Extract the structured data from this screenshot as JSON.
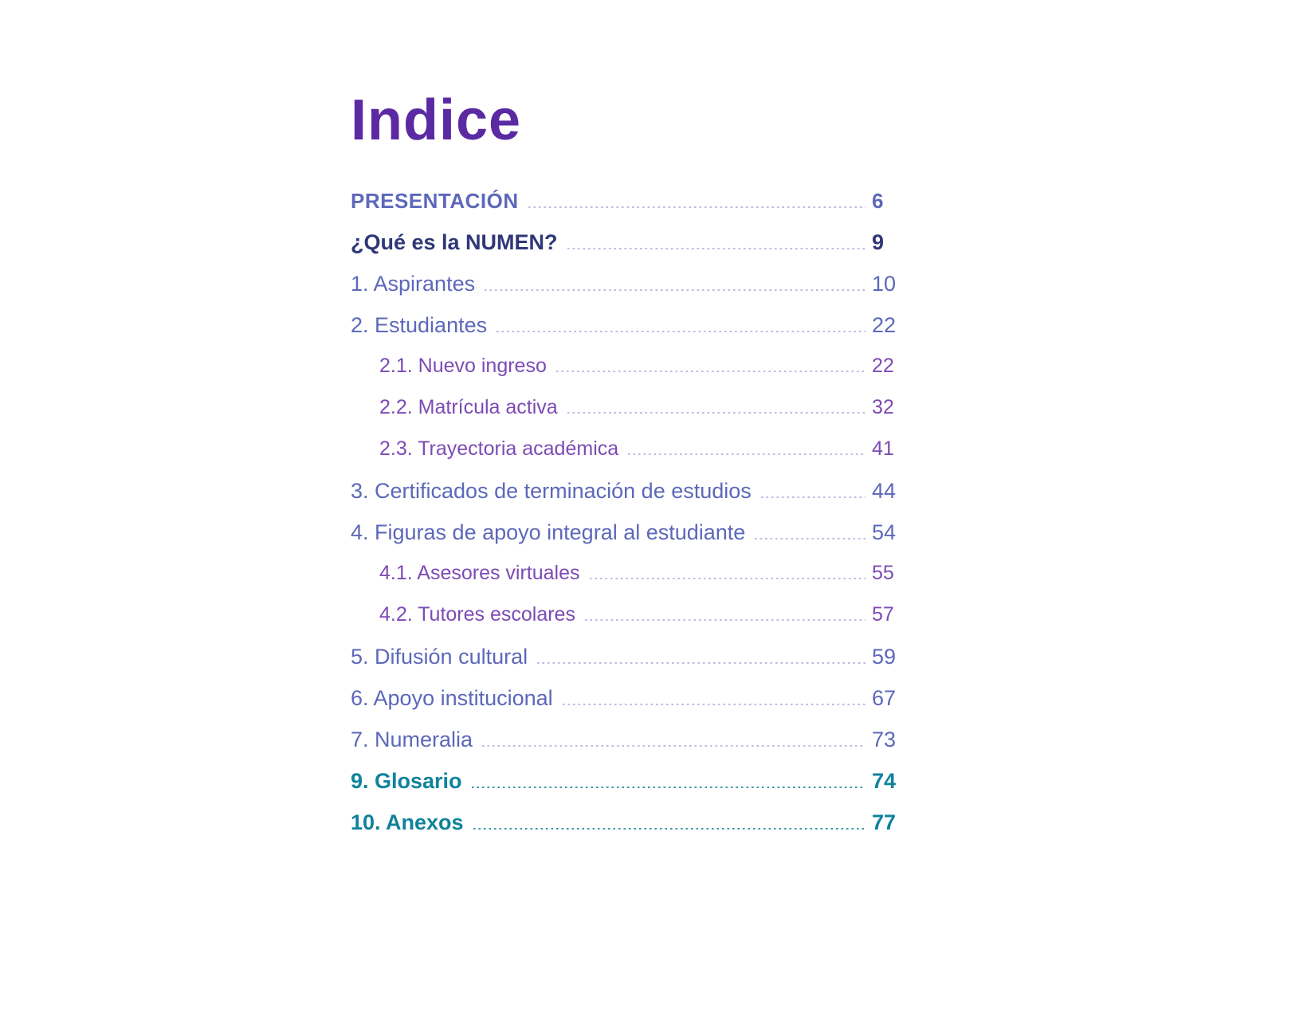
{
  "title": "Indice",
  "colors": {
    "title": "#5b2aa3",
    "main_entry": "#5c68ba",
    "navy_entry": "#2f3778",
    "sub_entry": "#7c4bb5",
    "teal_entry": "#0f829c",
    "leader_light": "#bcb9e2",
    "leader_teal": "#3997ab"
  },
  "toc": {
    "entries": [
      {
        "label": "PRESENTACIÓN",
        "page": "6",
        "variant": "presentation",
        "level": 0,
        "extra_gap": false
      },
      {
        "label": "¿Qué es la NUMEN?",
        "page": "9",
        "variant": "emphasis-navy",
        "level": 0,
        "extra_gap": false
      },
      {
        "label": "1. Aspirantes",
        "page": "10",
        "variant": "main",
        "level": 0,
        "extra_gap": false
      },
      {
        "label": "2. Estudiantes",
        "page": "22",
        "variant": "main",
        "level": 0,
        "extra_gap": false
      },
      {
        "label": "2.1. Nuevo ingreso",
        "page": "22",
        "variant": "sub",
        "level": 1,
        "extra_gap": false
      },
      {
        "label": "2.2. Matrícula activa",
        "page": "32",
        "variant": "sub",
        "level": 1,
        "extra_gap": false
      },
      {
        "label": "2.3. Trayectoria académica",
        "page": "41",
        "variant": "sub",
        "level": 1,
        "extra_gap": false
      },
      {
        "label": "3. Certificados de terminación de estudios",
        "page": "44",
        "variant": "main",
        "level": 0,
        "extra_gap": false
      },
      {
        "label": "4. Figuras de apoyo integral al estudiante",
        "page": "54",
        "variant": "main",
        "level": 0,
        "extra_gap": false
      },
      {
        "label": "4.1. Asesores virtuales",
        "page": "55",
        "variant": "sub",
        "level": 1,
        "extra_gap": false
      },
      {
        "label": "4.2. Tutores escolares",
        "page": "57",
        "variant": "sub",
        "level": 1,
        "extra_gap": false
      },
      {
        "label": "5. Difusión cultural",
        "page": "59",
        "variant": "main",
        "level": 0,
        "extra_gap": false
      },
      {
        "label": "6. Apoyo institucional",
        "page": "67",
        "variant": "main",
        "level": 0,
        "extra_gap": false
      },
      {
        "label": "7. Numeralia",
        "page": "73",
        "variant": "main",
        "level": 0,
        "extra_gap": false
      },
      {
        "label": "9. Glosario",
        "page": "74",
        "variant": "section-teal",
        "level": 0,
        "extra_gap": true
      },
      {
        "label": "10. Anexos",
        "page": "77",
        "variant": "section-teal",
        "level": 0,
        "extra_gap": true
      }
    ]
  }
}
